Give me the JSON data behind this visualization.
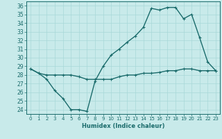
{
  "title": "",
  "xlabel": "Humidex (Indice chaleur)",
  "ylabel": "",
  "bg_color": "#c8eaea",
  "line_color": "#1a6b6b",
  "grid_color": "#a8d8d8",
  "ylim": [
    23.5,
    36.5
  ],
  "xlim": [
    -0.5,
    23.5
  ],
  "yticks": [
    24,
    25,
    26,
    27,
    28,
    29,
    30,
    31,
    32,
    33,
    34,
    35,
    36
  ],
  "xticks": [
    0,
    1,
    2,
    3,
    4,
    5,
    6,
    7,
    8,
    9,
    10,
    11,
    12,
    13,
    14,
    15,
    16,
    17,
    18,
    19,
    20,
    21,
    22,
    23
  ],
  "series1_x": [
    0,
    1,
    2,
    3,
    4,
    5,
    6,
    7,
    8,
    9,
    10,
    11,
    12,
    13,
    14,
    15,
    16,
    17,
    18,
    19,
    20,
    21,
    22,
    23
  ],
  "series1_y": [
    28.7,
    28.2,
    27.5,
    26.2,
    25.3,
    24.0,
    24.0,
    23.8,
    27.3,
    29.0,
    30.3,
    31.0,
    31.8,
    32.5,
    33.5,
    35.7,
    35.5,
    35.8,
    35.8,
    34.5,
    35.0,
    32.3,
    29.5,
    28.5
  ],
  "series2_x": [
    0,
    1,
    2,
    3,
    4,
    5,
    6,
    7,
    8,
    9,
    10,
    11,
    12,
    13,
    14,
    15,
    16,
    17,
    18,
    19,
    20,
    21,
    22,
    23
  ],
  "series2_y": [
    28.7,
    28.2,
    28.0,
    28.0,
    28.0,
    28.0,
    27.8,
    27.5,
    27.5,
    27.5,
    27.5,
    27.8,
    28.0,
    28.0,
    28.2,
    28.2,
    28.3,
    28.5,
    28.5,
    28.7,
    28.7,
    28.5,
    28.5,
    28.5
  ]
}
